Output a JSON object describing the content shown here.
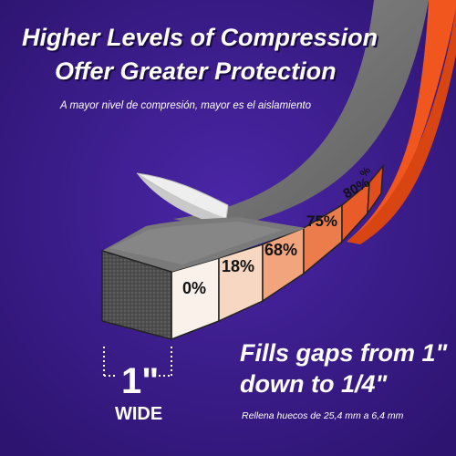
{
  "headline": {
    "line1": "Higher Levels of Compression",
    "line2": "Offer Greater Protection"
  },
  "subheadline": "A mayor nivel de compresión, mayor es el aislamiento",
  "compression_labels": [
    "0%",
    "18%",
    "68%",
    "75%",
    "80%",
    "%"
  ],
  "width": {
    "value": "1\"",
    "label": "WIDE"
  },
  "fills": {
    "line1": "Fills gaps from 1\"",
    "line2": "down to 1/4\"",
    "spanish": "Rellena huecos de 25,4 mm a 6,4 mm"
  },
  "colors": {
    "background": "#3b1c8c",
    "foam": "#5a5a5a",
    "adhesive_strip": "#f0561e",
    "segment_0": "#faf2ea",
    "segment_18": "#f7d7c1",
    "segment_68": "#f2a47c",
    "segment_75": "#ed7c4c",
    "segment_80": "#e95c2a"
  }
}
